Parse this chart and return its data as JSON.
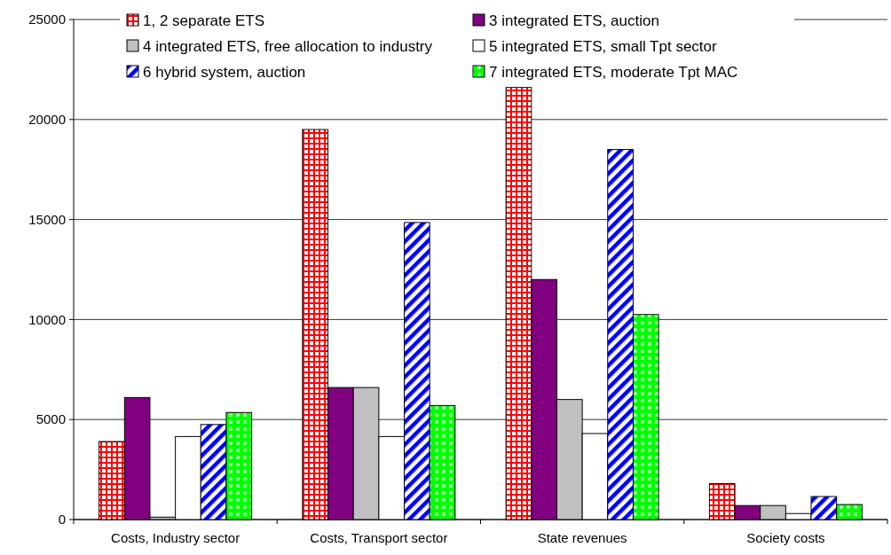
{
  "chart_data": {
    "type": "bar",
    "categories": [
      "Costs, Industry sector",
      "Costs, Transport sector",
      "State revenues",
      "Society costs"
    ],
    "series": [
      {
        "name": "1, 2 separate ETS",
        "color": "#ff0000",
        "values": [
          3900,
          19500,
          21600,
          1800
        ]
      },
      {
        "name": "3 integrated ETS, auction",
        "color": "#800080",
        "values": [
          6100,
          6600,
          12000,
          700
        ]
      },
      {
        "name": "4 integrated ETS, free allocation to industry",
        "color": "#c0c0c0",
        "values": [
          120,
          6600,
          6000,
          700
        ]
      },
      {
        "name": "5 integrated ETS, small Tpt sector",
        "color": "#ffffff",
        "values": [
          4150,
          4150,
          4300,
          300
        ]
      },
      {
        "name": "6 hybrid system, auction",
        "color": "#0000ff",
        "values": [
          4750,
          14850,
          18500,
          1150
        ]
      },
      {
        "name": "7 integrated ETS, moderate Tpt MAC",
        "color": "#00ff00",
        "values": [
          5350,
          5700,
          10250,
          750
        ]
      }
    ],
    "ylim": [
      0,
      25000
    ],
    "yticks": [
      0,
      5000,
      10000,
      15000,
      20000,
      25000
    ],
    "grid": "y",
    "legend": "top"
  }
}
